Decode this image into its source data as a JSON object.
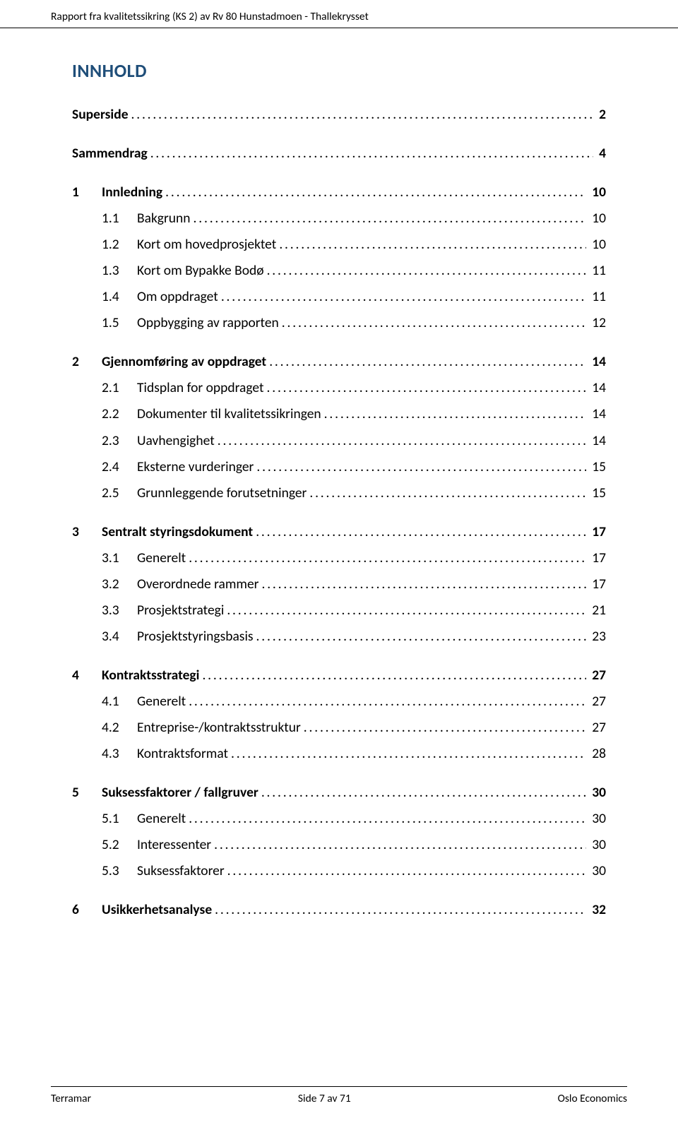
{
  "colors": {
    "background": "#ffffff",
    "text": "#000000",
    "heading": "#1f4e79",
    "rule": "#000000"
  },
  "header": {
    "running_title": "Rapport fra kvalitetssikring (KS 2) av Rv 80 Hunstadmoen - Thallekrysset"
  },
  "footer": {
    "left": "Terramar",
    "center": "Side 7 av 71",
    "right": "Oslo Economics"
  },
  "toc": {
    "title": "INNHOLD",
    "leader_char": ".",
    "entries": [
      {
        "level": 0,
        "num": "",
        "label": "Superside",
        "page": "2"
      },
      {
        "level": 0,
        "num": "",
        "label": "Sammendrag",
        "page": "4"
      },
      {
        "level": 0,
        "num": "1",
        "label": "Innledning",
        "page": "10"
      },
      {
        "level": 1,
        "num": "1.1",
        "label": "Bakgrunn",
        "page": "10"
      },
      {
        "level": 1,
        "num": "1.2",
        "label": "Kort om hovedprosjektet",
        "page": "10"
      },
      {
        "level": 1,
        "num": "1.3",
        "label": "Kort om Bypakke Bodø",
        "page": "11"
      },
      {
        "level": 1,
        "num": "1.4",
        "label": "Om oppdraget",
        "page": "11"
      },
      {
        "level": 1,
        "num": "1.5",
        "label": "Oppbygging av rapporten",
        "page": "12"
      },
      {
        "level": 0,
        "num": "2",
        "label": "Gjennomføring av oppdraget",
        "page": "14"
      },
      {
        "level": 1,
        "num": "2.1",
        "label": "Tidsplan for oppdraget",
        "page": "14"
      },
      {
        "level": 1,
        "num": "2.2",
        "label": "Dokumenter til kvalitetssikringen",
        "page": "14"
      },
      {
        "level": 1,
        "num": "2.3",
        "label": "Uavhengighet",
        "page": "14"
      },
      {
        "level": 1,
        "num": "2.4",
        "label": "Eksterne vurderinger",
        "page": "15"
      },
      {
        "level": 1,
        "num": "2.5",
        "label": "Grunnleggende forutsetninger",
        "page": "15"
      },
      {
        "level": 0,
        "num": "3",
        "label": "Sentralt styringsdokument",
        "page": "17"
      },
      {
        "level": 1,
        "num": "3.1",
        "label": "Generelt",
        "page": "17"
      },
      {
        "level": 1,
        "num": "3.2",
        "label": "Overordnede rammer",
        "page": "17"
      },
      {
        "level": 1,
        "num": "3.3",
        "label": "Prosjektstrategi",
        "page": "21"
      },
      {
        "level": 1,
        "num": "3.4",
        "label": "Prosjektstyringsbasis",
        "page": "23"
      },
      {
        "level": 0,
        "num": "4",
        "label": "Kontraktsstrategi",
        "page": "27"
      },
      {
        "level": 1,
        "num": "4.1",
        "label": "Generelt",
        "page": "27"
      },
      {
        "level": 1,
        "num": "4.2",
        "label": "Entreprise-/kontraktsstruktur",
        "page": "27"
      },
      {
        "level": 1,
        "num": "4.3",
        "label": "Kontraktsformat",
        "page": "28"
      },
      {
        "level": 0,
        "num": "5",
        "label": "Suksessfaktorer / fallgruver",
        "page": "30"
      },
      {
        "level": 1,
        "num": "5.1",
        "label": "Generelt",
        "page": "30"
      },
      {
        "level": 1,
        "num": "5.2",
        "label": "Interessenter",
        "page": "30"
      },
      {
        "level": 1,
        "num": "5.3",
        "label": "Suksessfaktorer",
        "page": "30"
      },
      {
        "level": 0,
        "num": "6",
        "label": "Usikkerhetsanalyse",
        "page": "32"
      }
    ]
  }
}
